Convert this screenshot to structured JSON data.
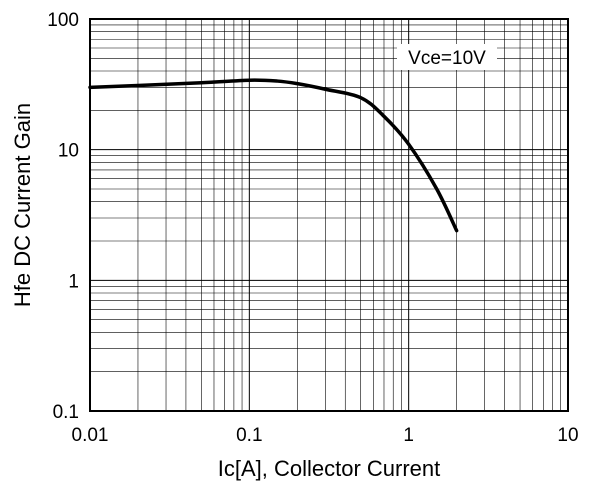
{
  "chart_data": {
    "type": "line",
    "x_scale": "log",
    "y_scale": "log",
    "xlim": [
      0.01,
      10
    ],
    "ylim": [
      0.1,
      100
    ],
    "grid": true,
    "xlabel": "Ic[A], Collector Current",
    "ylabel": "Hfe DC Current Gain",
    "x_ticks": [
      "0.01",
      "0.1",
      "1",
      "10"
    ],
    "y_ticks": [
      "0.1",
      "1",
      "10",
      "100"
    ],
    "annotations": [
      {
        "text": "Vce=10V"
      }
    ],
    "series": [
      {
        "x": [
          0.01,
          0.02,
          0.05,
          0.1,
          0.15,
          0.2,
          0.3,
          0.5,
          0.7,
          1.0,
          1.5,
          2.0
        ],
        "y": [
          30,
          31,
          32.5,
          34,
          33.5,
          32,
          29,
          25,
          18,
          11,
          5,
          2.4
        ]
      }
    ]
  },
  "style": {
    "line_color": "#000000",
    "grid_color": "#000000",
    "background": "#ffffff"
  }
}
